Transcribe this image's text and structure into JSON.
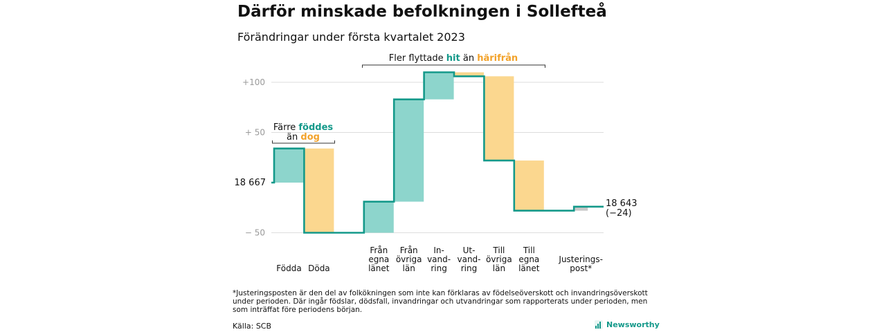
{
  "title": "Därför minskade befolkningen i Sollefteå",
  "subtitle": "Förändringar under första kvartalet 2023",
  "chart_data": {
    "type": "waterfall",
    "title": "Därför minskade befolkningen i Sollefteå",
    "subtitle": "Förändringar under första kvartalet 2023",
    "start": {
      "label": "18 667",
      "value": 18667
    },
    "end": {
      "label_line1": "18 643",
      "label_line2": "(−24)",
      "value": 18643,
      "change": -24
    },
    "ylim_relative": [
      -55,
      110
    ],
    "y_ticks": [
      {
        "value": 100,
        "label": "+100"
      },
      {
        "value": 50,
        "label": "+ 50"
      },
      {
        "value": -50,
        "label": "− 50"
      }
    ],
    "grid": true,
    "steps": [
      {
        "label_lines": [
          "Födda"
        ],
        "change": 34,
        "color": "teal"
      },
      {
        "label_lines": [
          "Döda"
        ],
        "change": -84,
        "color": "orange"
      },
      {
        "label_lines": [
          "Från",
          "egna",
          "länet"
        ],
        "change": 31,
        "color": "teal"
      },
      {
        "label_lines": [
          "Från",
          "övriga",
          "län"
        ],
        "change": 102,
        "color": "teal"
      },
      {
        "label_lines": [
          "In-",
          "vand-",
          "ring"
        ],
        "change": 27,
        "color": "teal"
      },
      {
        "label_lines": [
          "Ut-",
          "vand-",
          "ring"
        ],
        "change": -4,
        "color": "orange"
      },
      {
        "label_lines": [
          "Till",
          "övriga",
          "län"
        ],
        "change": -84,
        "color": "orange"
      },
      {
        "label_lines": [
          "Till",
          "egna",
          "länet"
        ],
        "change": -50,
        "color": "orange"
      },
      {
        "label_lines": [
          "Justerings-",
          "post*"
        ],
        "change": 4,
        "color": "gray"
      }
    ],
    "annotations": {
      "born_vs_died": {
        "line1_pre": "Färre ",
        "line1_highlight": "föddes",
        "line2_pre": "än ",
        "line2_highlight": "dog"
      },
      "migration": {
        "pre": "Fler flyttade ",
        "highlight1": "hit",
        "mid": " än ",
        "highlight2": "härifrån"
      }
    },
    "colors": {
      "teal_fill": "#8dd5cc",
      "orange_fill": "#fbd78f",
      "gray_fill": "#c8c8c8",
      "line": "#14998a",
      "teal_text": "#14998a",
      "orange_text": "#f2a22a",
      "grid": "#dddddd"
    }
  },
  "footnote": "*Justeringsposten är den del av folkökningen som inte kan förklaras av födelseöverskott och invandringsöverskott under perioden. Där ingår födslar, dödsfall, invandringar och utvandringar som rapporterats under perioden, men som inträffat före periodens början.",
  "source": "Källa: SCB",
  "brand": {
    "name": "Newsworthy",
    "icon": "bar-chart-icon"
  }
}
